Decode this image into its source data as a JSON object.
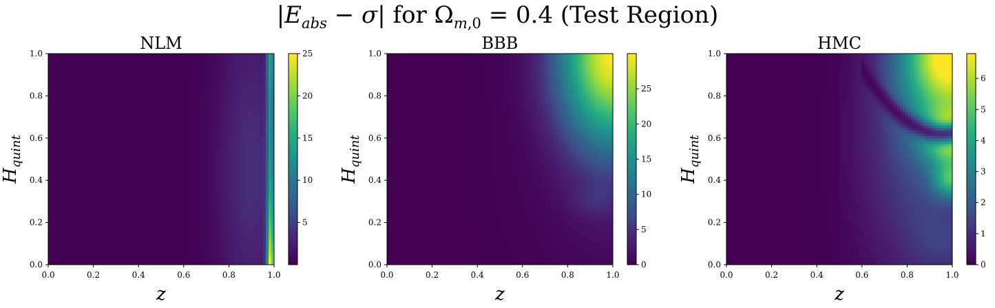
{
  "figure": {
    "suptitle": "|E_abs − σ| for Ω_{m,0} = 0.4 (Test Region)"
  },
  "chart_data": [
    {
      "type": "heatmap",
      "title": "NLM",
      "xlabel": "z",
      "ylabel": "H_quint",
      "xlim": [
        0.0,
        1.0
      ],
      "ylim": [
        0.0,
        1.0
      ],
      "xticks": [
        "0.0",
        "0.2",
        "0.4",
        "0.6",
        "0.8",
        "1.0"
      ],
      "yticks": [
        "0.0",
        "0.2",
        "0.4",
        "0.6",
        "0.8",
        "1.0"
      ],
      "colormap": "viridis",
      "colorbar": {
        "min": 0,
        "max": 25,
        "ticks": [
          5,
          10,
          15,
          20,
          25
        ]
      },
      "pattern": "Value near zero for z < 0.6, rising to a broad band (~3) around z ≈ 0.9 across all H_quint, with a thin bright ring near z ≈ 0.98 reaching ~25 at H_quint ≈ 0 and ~15 at H_quint ≈ 1."
    },
    {
      "type": "heatmap",
      "title": "BBB",
      "xlabel": "z",
      "ylabel": "H_quint",
      "xlim": [
        0.0,
        1.0
      ],
      "ylim": [
        0.0,
        1.0
      ],
      "xticks": [
        "0.0",
        "0.2",
        "0.4",
        "0.6",
        "0.8",
        "1.0"
      ],
      "yticks": [
        "0.0",
        "0.2",
        "0.4",
        "0.6",
        "0.8",
        "1.0"
      ],
      "colormap": "viridis",
      "colorbar": {
        "min": 0,
        "max": 30,
        "ticks": [
          0,
          5,
          10,
          15,
          20,
          25
        ]
      },
      "pattern": "Near zero almost everywhere; grows toward the top-right corner, reaching ~30 at z = 1, H_quint = 1, with a faint ridge near z ≈ 0.9, H_quint ≈ 0.28."
    },
    {
      "type": "heatmap",
      "title": "HMC",
      "xlabel": "z",
      "ylabel": "H_quint",
      "xlim": [
        0.0,
        1.0
      ],
      "ylim": [
        0.0,
        1.0
      ],
      "xticks": [
        "0.0",
        "0.2",
        "0.4",
        "0.6",
        "0.8",
        "1.0"
      ],
      "yticks": [
        "0.0",
        "0.2",
        "0.4",
        "0.6",
        "0.8",
        "1.0"
      ],
      "colormap": "viridis",
      "colorbar": {
        "min": 0,
        "max": 6.8,
        "ticks": [
          0,
          1,
          2,
          3,
          4,
          5,
          6
        ]
      },
      "pattern": "Near zero for z < 0.5; peaks ~6.8 at the top-right corner, with secondary lobes near z ≈ 1, H_quint ≈ 0.6 (~5) and H_quint ≈ 0.4 (~3.5), separated by a dark arc-shaped valley."
    }
  ]
}
